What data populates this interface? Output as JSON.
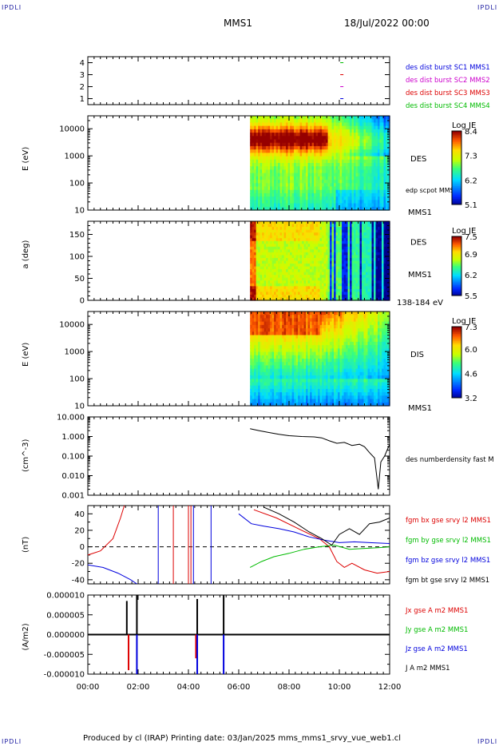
{
  "corner_label": "IPDLI",
  "header": {
    "spacecraft": "MMS1",
    "datetime": "18/Jul/2022 00:00"
  },
  "footer": {
    "text": "Produced by cl (IRAP)   Printing date: 03/Jan/2025   mms_mms1_srvy_vue_web1.cl"
  },
  "x_axis": {
    "ticks": [
      "00:00",
      "02:00",
      "04:00",
      "06:00",
      "08:00",
      "10:00",
      "12:00"
    ],
    "range_hours": [
      0,
      12
    ]
  },
  "chart_data": [
    {
      "type": "scatter",
      "panel": "availability",
      "y_ticks": [
        "1",
        "2",
        "3",
        "4"
      ],
      "ylim": [
        0.5,
        4.5
      ],
      "legend": [
        {
          "label": "des dist burst SC1 MMS1",
          "color": "#0000dd"
        },
        {
          "label": "des dist burst SC2 MMS2",
          "color": "#cc00cc"
        },
        {
          "label": "des dist burst SC3 MMS3",
          "color": "#dd0000"
        },
        {
          "label": "des dist burst SC4 MMS4",
          "color": "#00bb00"
        }
      ],
      "marks": [
        {
          "sc": 1,
          "x": 10.1,
          "color": "#0000dd"
        },
        {
          "sc": 2,
          "x": 10.1,
          "color": "#cc00cc"
        },
        {
          "sc": 3,
          "x": 10.1,
          "color": "#dd0000"
        },
        {
          "sc": 4,
          "x": 10.1,
          "color": "#00bb00"
        }
      ]
    },
    {
      "type": "heatmap",
      "panel": "des-energy",
      "ylabel": "E (eV)",
      "y_scale": "log",
      "ylim": [
        10,
        30000
      ],
      "y_ticks": [
        "10",
        "100",
        "1000",
        "10000"
      ],
      "data_start_hour": 6.45,
      "label": "DES",
      "sub_label": "edp scpot MMS1",
      "bottom_label": "MMS1",
      "colorbar": {
        "title": "Log JE",
        "ticks": [
          "8.4",
          "7.3",
          "6.2",
          "5.1"
        ],
        "min": 5.1,
        "max": 8.4
      }
    },
    {
      "type": "heatmap",
      "panel": "des-pitch",
      "ylabel": "a (deg)",
      "ylim": [
        0,
        180
      ],
      "y_ticks": [
        "0",
        "50",
        "100",
        "150"
      ],
      "data_start_hour": 6.45,
      "label": "DES",
      "sub_label": "MMS1",
      "bottom_label": "138-184 eV",
      "colorbar": {
        "title": "Log JE",
        "ticks": [
          "7.5",
          "6.9",
          "6.2",
          "5.5"
        ],
        "min": 5.5,
        "max": 7.5
      }
    },
    {
      "type": "heatmap",
      "panel": "dis-energy",
      "ylabel": "E (eV)",
      "y_scale": "log",
      "ylim": [
        10,
        30000
      ],
      "y_ticks": [
        "10",
        "100",
        "1000",
        "10000"
      ],
      "data_start_hour": 6.45,
      "label": "DIS",
      "bottom_label": "MMS1",
      "colorbar": {
        "title": "Log JE",
        "ticks": [
          "7.3",
          "6.0",
          "4.6",
          "3.2"
        ],
        "min": 3.2,
        "max": 7.3
      }
    },
    {
      "type": "line",
      "panel": "density",
      "ylabel": "(cm^-3)",
      "y_scale": "log",
      "ylim": [
        0.001,
        10
      ],
      "y_ticks": [
        "0.001",
        "0.010",
        "0.100",
        "1.000",
        "10.000"
      ],
      "legend": [
        {
          "label": "des numberdensity fast M",
          "color": "#000000"
        }
      ],
      "series": [
        {
          "color": "#000000",
          "x": [
            6.45,
            6.8,
            7.2,
            7.6,
            8.0,
            8.5,
            9.0,
            9.3,
            9.6,
            9.9,
            10.2,
            10.5,
            10.8,
            11.0,
            11.2,
            11.4,
            11.55,
            11.65,
            11.8,
            12.0
          ],
          "y": [
            2.5,
            2.0,
            1.6,
            1.3,
            1.1,
            1.0,
            0.95,
            0.85,
            0.6,
            0.45,
            0.5,
            0.35,
            0.4,
            0.3,
            0.15,
            0.08,
            0.002,
            0.05,
            0.1,
            0.4
          ]
        }
      ]
    },
    {
      "type": "line",
      "panel": "b-field",
      "ylabel": "(nT)",
      "ylim": [
        -45,
        50
      ],
      "y_ticks": [
        "-40",
        "-20",
        "0",
        "20",
        "40"
      ],
      "legend": [
        {
          "label": "fgm bx gse srvy l2 MMS1",
          "color": "#dd0000"
        },
        {
          "label": "fgm by gse srvy l2 MMS1",
          "color": "#00bb00"
        },
        {
          "label": "fgm bz gse srvy l2 MMS1",
          "color": "#0000dd"
        },
        {
          "label": "fgm bt gse srvy l2 MMS1",
          "color": "#000000"
        }
      ],
      "series": [
        {
          "name": "bx",
          "color": "#dd0000",
          "x": [
            0,
            0.5,
            1.0,
            1.3,
            1.45
          ],
          "y": [
            -10,
            -5,
            10,
            35,
            50
          ]
        },
        {
          "name": "bx",
          "color": "#dd0000",
          "x": [
            6.6,
            7.5,
            8.5,
            9.2,
            9.6,
            9.9,
            10.2,
            10.5,
            11.0,
            11.5,
            12.0
          ],
          "y": [
            45,
            35,
            20,
            10,
            0,
            -18,
            -25,
            -20,
            -28,
            -32,
            -30
          ]
        },
        {
          "name": "by",
          "color": "#00bb00",
          "x": [
            6.45,
            6.9,
            7.4,
            8.0,
            8.6,
            9.2,
            9.8,
            10.4,
            11.0,
            11.6,
            12.0
          ],
          "y": [
            -25,
            -18,
            -12,
            -8,
            -3,
            0,
            2,
            -3,
            -2,
            -1,
            0
          ]
        },
        {
          "name": "bz",
          "color": "#0000dd",
          "x": [
            0,
            0.6,
            1.2,
            1.7,
            1.95
          ],
          "y": [
            -22,
            -25,
            -32,
            -40,
            -45
          ]
        },
        {
          "name": "bz",
          "color": "#0000dd",
          "x": [
            6.0,
            6.5,
            7.0,
            7.6,
            8.2,
            8.8,
            9.4,
            10.0,
            10.6,
            11.2,
            12.0
          ],
          "y": [
            40,
            28,
            25,
            22,
            18,
            12,
            8,
            5,
            6,
            5,
            4
          ]
        },
        {
          "name": "bt",
          "color": "#000000",
          "x": [
            7.0,
            7.6,
            8.2,
            8.8,
            9.3,
            9.7,
            10.0,
            10.4,
            10.8,
            11.2,
            11.6,
            12.0
          ],
          "y": [
            48,
            40,
            30,
            18,
            10,
            2,
            15,
            22,
            15,
            28,
            30,
            35
          ]
        }
      ]
    },
    {
      "type": "line",
      "panel": "current",
      "ylabel": "(A/m2)",
      "ylim": [
        -1e-05,
        1e-05
      ],
      "y_ticks": [
        "-0.000010",
        "-0.000005",
        "0.000000",
        "0.000005",
        "0.000010"
      ],
      "legend": [
        {
          "label": "Jx gse A m2 MMS1",
          "color": "#dd0000"
        },
        {
          "label": "Jy gse A m2 MMS1",
          "color": "#00bb00"
        },
        {
          "label": "Jz gse A m2 MMS1",
          "color": "#0000dd"
        },
        {
          "label": "J A m2 MMS1",
          "color": "#000000"
        }
      ],
      "spikes": [
        {
          "x": 1.55,
          "y": 8.5e-06,
          "color": "#000000"
        },
        {
          "x": 1.62,
          "y": -9e-06,
          "color": "#dd0000"
        },
        {
          "x": 1.95,
          "y": 1e-05,
          "color": "#000000"
        },
        {
          "x": 1.95,
          "y": -1e-05,
          "color": "#0000dd"
        },
        {
          "x": 4.35,
          "y": 9e-06,
          "color": "#000000"
        },
        {
          "x": 4.3,
          "y": -6e-06,
          "color": "#dd0000"
        },
        {
          "x": 4.35,
          "y": -1e-05,
          "color": "#0000dd"
        },
        {
          "x": 5.4,
          "y": 1e-05,
          "color": "#000000"
        },
        {
          "x": 5.4,
          "y": -1e-05,
          "color": "#0000dd"
        }
      ]
    }
  ]
}
